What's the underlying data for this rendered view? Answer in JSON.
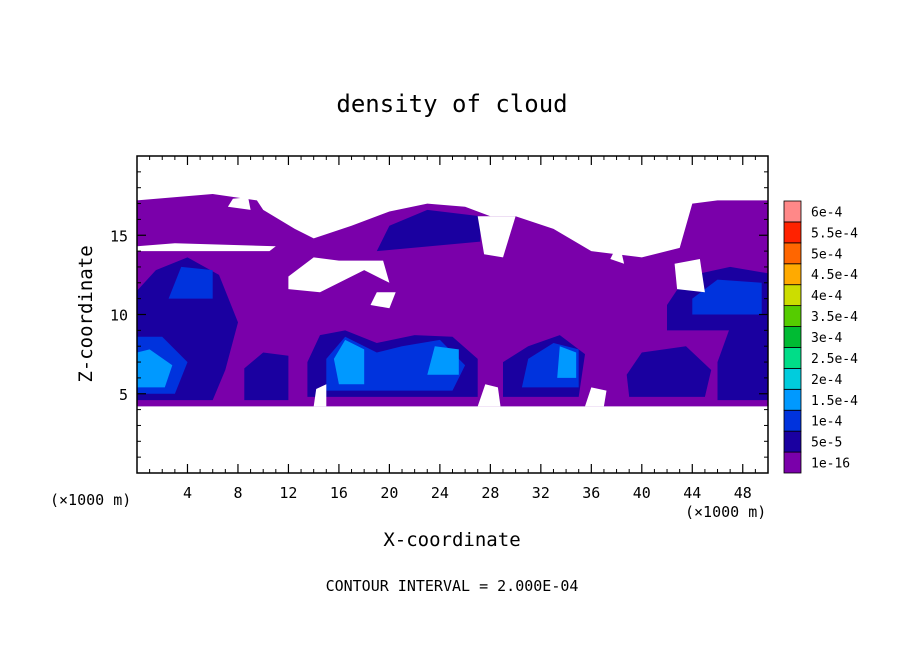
{
  "chart_data": {
    "type": "heatmap",
    "title": "density of cloud",
    "xlabel": "X-coordinate",
    "ylabel": "Z-coordinate",
    "x_unit": "(×1000 m)",
    "z_unit": "(×1000 m)",
    "xlim": [
      0,
      50
    ],
    "ylim": [
      0,
      20
    ],
    "x_ticks": [
      4,
      8,
      12,
      16,
      20,
      24,
      28,
      32,
      36,
      40,
      44,
      48
    ],
    "y_ticks": [
      5,
      10,
      15
    ],
    "footer": "CONTOUR INTERVAL = 2.000E-04",
    "colorbar": {
      "levels": [
        {
          "label": "1e-16",
          "color": "#7a00aa"
        },
        {
          "label": "5e-5",
          "color": "#1a00a0"
        },
        {
          "label": "1e-4",
          "color": "#0033dd"
        },
        {
          "label": "1.5e-4",
          "color": "#0099ff"
        },
        {
          "label": "2e-4",
          "color": "#00ccdd"
        },
        {
          "label": "2.5e-4",
          "color": "#00dd88"
        },
        {
          "label": "3e-4",
          "color": "#00bb33"
        },
        {
          "label": "3.5e-4",
          "color": "#55cc00"
        },
        {
          "label": "4e-4",
          "color": "#ccdd00"
        },
        {
          "label": "4.5e-4",
          "color": "#ffaa00"
        },
        {
          "label": "5e-4",
          "color": "#ff6600"
        },
        {
          "label": "5.5e-4",
          "color": "#ff2200"
        },
        {
          "label": "6e-4",
          "color": "#ff8888"
        }
      ]
    },
    "cloud_regions": [
      {
        "level": 0,
        "points": [
          [
            0,
            4.2
          ],
          [
            50,
            4.2
          ],
          [
            50,
            17.2
          ],
          [
            46,
            17.2
          ],
          [
            44,
            17.0
          ],
          [
            43,
            14.2
          ],
          [
            40,
            13.6
          ],
          [
            36,
            14.0
          ],
          [
            33,
            15.4
          ],
          [
            30,
            16.2
          ],
          [
            28,
            16.2
          ],
          [
            26,
            16.8
          ],
          [
            23,
            17.0
          ],
          [
            20,
            16.5
          ],
          [
            17,
            15.6
          ],
          [
            14,
            14.8
          ],
          [
            12.5,
            15.4
          ],
          [
            10,
            16.6
          ],
          [
            9.5,
            17.2
          ],
          [
            6,
            17.6
          ],
          [
            0,
            17.2
          ]
        ]
      },
      {
        "level": 1,
        "points": [
          [
            0,
            4.6
          ],
          [
            6,
            4.6
          ],
          [
            7,
            6.5
          ],
          [
            8,
            9.5
          ],
          [
            6.5,
            12.5
          ],
          [
            4,
            13.6
          ],
          [
            1.5,
            12.8
          ],
          [
            0,
            11.5
          ]
        ]
      },
      {
        "level": 1,
        "points": [
          [
            8.5,
            4.6
          ],
          [
            12,
            4.6
          ],
          [
            12,
            7.4
          ],
          [
            10,
            7.6
          ],
          [
            8.5,
            6.6
          ]
        ]
      },
      {
        "level": 1,
        "points": [
          [
            13.5,
            4.8
          ],
          [
            27,
            4.8
          ],
          [
            27,
            7.2
          ],
          [
            25,
            8.6
          ],
          [
            22,
            8.7
          ],
          [
            19,
            8.2
          ],
          [
            16.5,
            9.0
          ],
          [
            14.5,
            8.7
          ],
          [
            13.5,
            7.0
          ]
        ]
      },
      {
        "level": 1,
        "points": [
          [
            29,
            4.8
          ],
          [
            35,
            4.8
          ],
          [
            35.5,
            7.5
          ],
          [
            33.5,
            8.7
          ],
          [
            31,
            8.0
          ],
          [
            29,
            7.0
          ]
        ]
      },
      {
        "level": 1,
        "points": [
          [
            39,
            4.8
          ],
          [
            45,
            4.8
          ],
          [
            45.5,
            6.5
          ],
          [
            43.5,
            8.0
          ],
          [
            40,
            7.6
          ],
          [
            38.8,
            6.2
          ]
        ]
      },
      {
        "level": 1,
        "points": [
          [
            42,
            9.0
          ],
          [
            50,
            9.0
          ],
          [
            50,
            12.6
          ],
          [
            47,
            13.0
          ],
          [
            43.5,
            12.4
          ],
          [
            42,
            10.6
          ]
        ]
      },
      {
        "level": 1,
        "points": [
          [
            46,
            4.6
          ],
          [
            50,
            4.6
          ],
          [
            50,
            9.6
          ],
          [
            47,
            9.2
          ],
          [
            46,
            7.0
          ]
        ]
      },
      {
        "level": 1,
        "points": [
          [
            19,
            14.0
          ],
          [
            27.2,
            14.6
          ],
          [
            27.2,
            16.2
          ],
          [
            23,
            16.6
          ],
          [
            20,
            15.6
          ]
        ]
      },
      {
        "level": 2,
        "points": [
          [
            0,
            5.0
          ],
          [
            3,
            5.0
          ],
          [
            4,
            7.0
          ],
          [
            2,
            8.6
          ],
          [
            0,
            8.6
          ]
        ]
      },
      {
        "level": 2,
        "points": [
          [
            15,
            5.2
          ],
          [
            25,
            5.2
          ],
          [
            26,
            6.8
          ],
          [
            24,
            8.4
          ],
          [
            21,
            8.0
          ],
          [
            19,
            7.6
          ],
          [
            16.5,
            8.6
          ],
          [
            15,
            7.2
          ]
        ]
      },
      {
        "level": 2,
        "points": [
          [
            30.5,
            5.4
          ],
          [
            35,
            5.4
          ],
          [
            35,
            7.8
          ],
          [
            33,
            8.2
          ],
          [
            31,
            7.2
          ]
        ]
      },
      {
        "level": 2,
        "points": [
          [
            44,
            10.0
          ],
          [
            49.5,
            10.0
          ],
          [
            49.5,
            12.0
          ],
          [
            46,
            12.2
          ],
          [
            44,
            11.0
          ]
        ]
      },
      {
        "level": 2,
        "points": [
          [
            2.5,
            11.0
          ],
          [
            6,
            11.0
          ],
          [
            6,
            12.8
          ],
          [
            3.5,
            13.0
          ]
        ]
      },
      {
        "level": 3,
        "points": [
          [
            0,
            5.4
          ],
          [
            2.2,
            5.4
          ],
          [
            2.8,
            6.8
          ],
          [
            1,
            7.8
          ],
          [
            0,
            7.6
          ]
        ]
      },
      {
        "level": 3,
        "points": [
          [
            16,
            5.6
          ],
          [
            18,
            5.6
          ],
          [
            18,
            7.8
          ],
          [
            16.5,
            8.4
          ],
          [
            15.6,
            7.2
          ]
        ]
      },
      {
        "level": 3,
        "points": [
          [
            23,
            6.2
          ],
          [
            25.5,
            6.2
          ],
          [
            25.5,
            7.8
          ],
          [
            23.6,
            8.0
          ]
        ]
      },
      {
        "level": 3,
        "points": [
          [
            33.3,
            6.0
          ],
          [
            34.8,
            6.0
          ],
          [
            34.8,
            7.6
          ],
          [
            33.5,
            8.0
          ]
        ]
      }
    ],
    "gaps": [
      {
        "points": [
          [
            0,
            14.0
          ],
          [
            10.5,
            14.0
          ],
          [
            11,
            14.3
          ],
          [
            3,
            14.5
          ],
          [
            0,
            14.3
          ]
        ]
      },
      {
        "points": [
          [
            12,
            11.6
          ],
          [
            14.5,
            11.4
          ],
          [
            18,
            12.8
          ],
          [
            20,
            12.0
          ],
          [
            19.5,
            13.4
          ],
          [
            16,
            13.4
          ],
          [
            14,
            13.6
          ],
          [
            12,
            12.4
          ]
        ]
      },
      {
        "points": [
          [
            18.5,
            10.6
          ],
          [
            20,
            10.4
          ],
          [
            20.5,
            11.4
          ],
          [
            19,
            11.4
          ]
        ]
      },
      {
        "points": [
          [
            27,
            16.2
          ],
          [
            30,
            16.2
          ],
          [
            29,
            13.6
          ],
          [
            27.5,
            13.8
          ]
        ]
      },
      {
        "points": [
          [
            37.5,
            13.5
          ],
          [
            38.6,
            13.2
          ],
          [
            38.2,
            14.6
          ]
        ]
      },
      {
        "points": [
          [
            42.8,
            11.6
          ],
          [
            45,
            11.4
          ],
          [
            44.6,
            13.5
          ],
          [
            42.6,
            13.2
          ]
        ]
      },
      {
        "points": [
          [
            14,
            4.2
          ],
          [
            15,
            4.2
          ],
          [
            15,
            5.6
          ],
          [
            14.2,
            5.3
          ]
        ]
      },
      {
        "points": [
          [
            27,
            4.2
          ],
          [
            28.8,
            4.2
          ],
          [
            28.6,
            5.4
          ],
          [
            27.6,
            5.6
          ]
        ]
      },
      {
        "points": [
          [
            35.5,
            4.2
          ],
          [
            37,
            4.2
          ],
          [
            37.2,
            5.2
          ],
          [
            36,
            5.4
          ]
        ]
      },
      {
        "points": [
          [
            7.2,
            16.8
          ],
          [
            9,
            16.6
          ],
          [
            8.8,
            17.4
          ],
          [
            7.6,
            17.3
          ]
        ]
      }
    ]
  }
}
